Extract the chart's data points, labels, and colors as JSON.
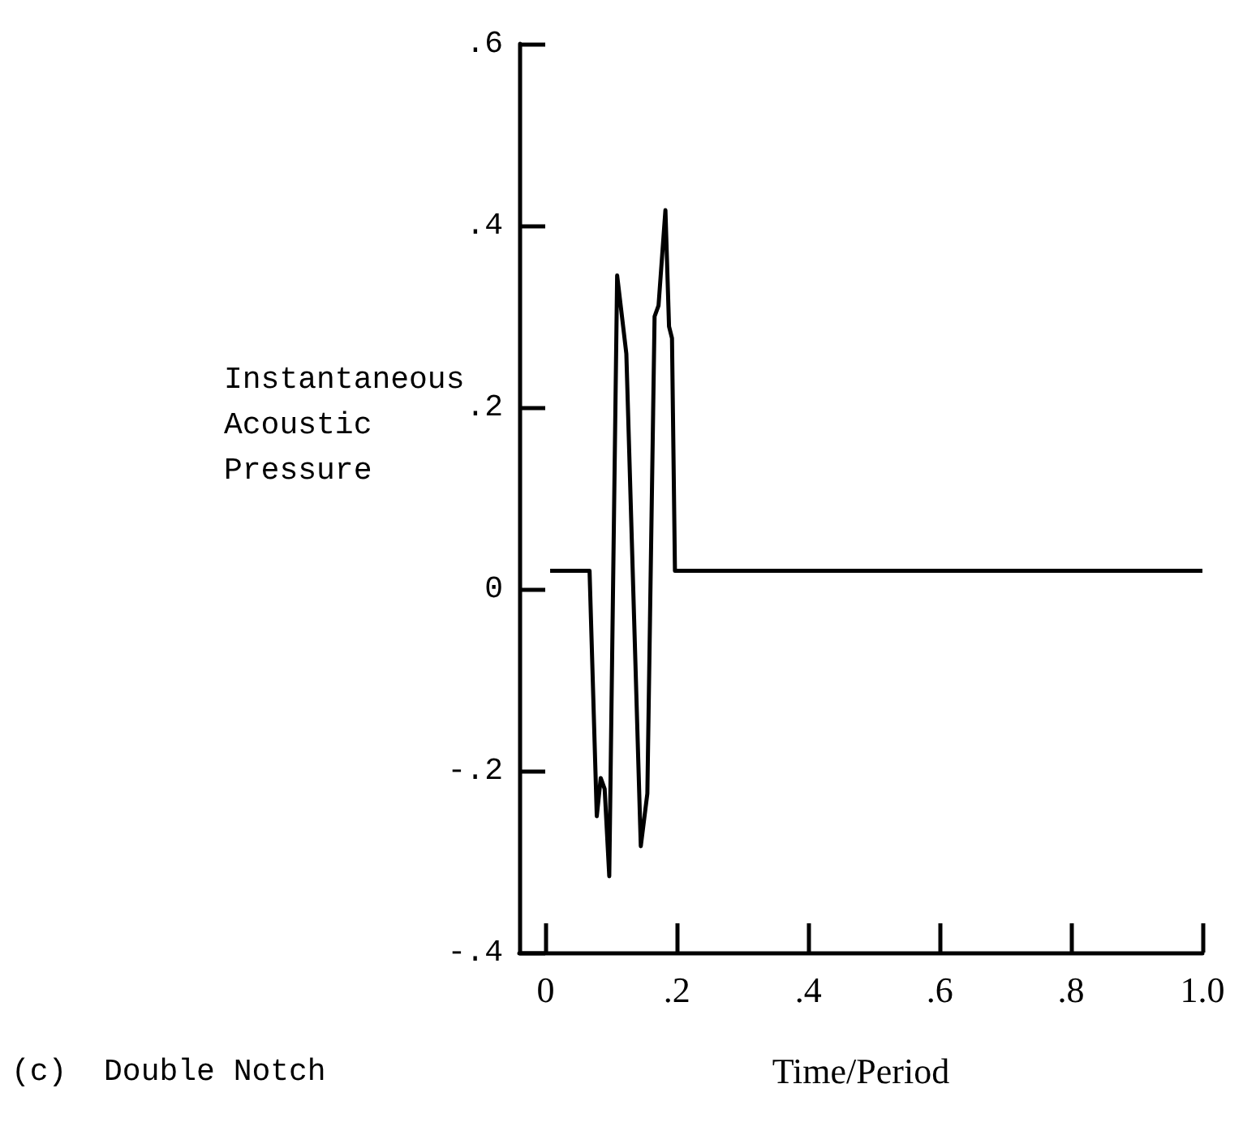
{
  "chart_data": {
    "type": "line",
    "xlabel": "Time/Period",
    "ylabel": "Instantaneous\nAcoustic\nPressure",
    "annotations": [
      "(c)  Double Notch"
    ],
    "x": [
      0.007,
      0.067,
      0.078,
      0.084,
      0.09,
      0.097,
      0.109,
      0.123,
      0.145,
      0.155,
      0.166,
      0.172,
      0.1825,
      0.188,
      0.1925,
      0.197,
      1.0
    ],
    "series": [
      {
        "color": "#000000",
        "values": [
          0.02,
          0.02,
          -0.25,
          -0.208,
          -0.22,
          -0.316,
          0.345,
          0.259,
          -0.283,
          -0.225,
          0.3,
          0.312,
          0.417,
          0.289,
          0.276,
          0.02,
          0.02
        ]
      }
    ],
    "xlim": [
      -0.04,
      1.0
    ],
    "ylim": [
      -0.4,
      0.6
    ],
    "xticks": [
      {
        "value": 0,
        "label": "0"
      },
      {
        "value": 0.2,
        "label": ".2"
      },
      {
        "value": 0.4,
        "label": ".4"
      },
      {
        "value": 0.6,
        "label": ".6"
      },
      {
        "value": 0.8,
        "label": ".8"
      },
      {
        "value": 1.0,
        "label": "1.0"
      }
    ],
    "yticks": [
      {
        "value": -0.4,
        "label": "-.4"
      },
      {
        "value": -0.2,
        "label": "-.2"
      },
      {
        "value": 0,
        "label": "0"
      },
      {
        "value": 0.2,
        "label": ".2"
      },
      {
        "value": 0.4,
        "label": ".4"
      },
      {
        "value": 0.6,
        "label": ".6"
      }
    ],
    "grid": false,
    "marker": "none",
    "line_style": "solid"
  }
}
